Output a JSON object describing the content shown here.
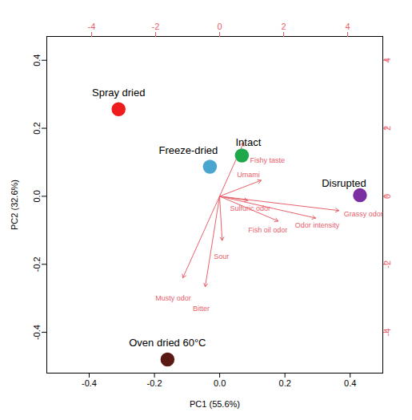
{
  "chart_data": {
    "type": "biplot",
    "xlabel": "PC1 (55.6%)",
    "ylabel": "PC2 (32.6%)",
    "xlim": [
      -0.53,
      0.5
    ],
    "ylim": [
      -0.52,
      0.47
    ],
    "xticks": [
      -0.4,
      -0.2,
      {
        "value": 0,
        "label": "0.0"
      },
      0.2,
      0.4
    ],
    "yticks": [
      -0.4,
      -0.2,
      {
        "value": 0,
        "label": "0.0"
      },
      0.2,
      0.4
    ],
    "x2lim": [
      -5.4,
      5.1
    ],
    "x2ticks": [
      -4,
      -2,
      0,
      2,
      4
    ],
    "y2lim": [
      -5.2,
      4.7
    ],
    "y2ticks": [
      -4,
      -2,
      0,
      2,
      4
    ],
    "points": [
      {
        "label": "Spray dried",
        "x": -0.31,
        "y": 0.256,
        "color": "#ee1c1c"
      },
      {
        "label": "Freeze-dried",
        "x": -0.03,
        "y": 0.087,
        "color": "#4aa6d0"
      },
      {
        "label": "Intact",
        "x": 0.068,
        "y": 0.12,
        "color": "#1fa84a"
      },
      {
        "label": "Disrupted",
        "x": 0.43,
        "y": 0.003,
        "color": "#7b2fa0"
      },
      {
        "label": "Oven dried 60°C",
        "x": -0.16,
        "y": -0.48,
        "color": "#5a1a14"
      }
    ],
    "loadings": {
      "axis": "y2",
      "color": "#e8606a",
      "vectors": [
        {
          "label": "Fishy taste",
          "x": 0.75,
          "y": 1.58
        },
        {
          "label": "Umami",
          "x": 1.3,
          "y": 0.47
        },
        {
          "label": "Sulfuric odor",
          "x": 0.88,
          "y": -0.12
        },
        {
          "label": "Grassy odor",
          "x": 3.73,
          "y": -0.42
        },
        {
          "label": "Odor intensity",
          "x": 3.0,
          "y": -0.64
        },
        {
          "label": "Fish oil odor",
          "x": 1.83,
          "y": -0.73
        },
        {
          "label": "Sour",
          "x": 0.08,
          "y": -1.3
        },
        {
          "label": "Musty odor",
          "x": -1.15,
          "y": -2.4
        },
        {
          "label": "Bitter",
          "x": -0.45,
          "y": -2.66
        }
      ]
    }
  }
}
